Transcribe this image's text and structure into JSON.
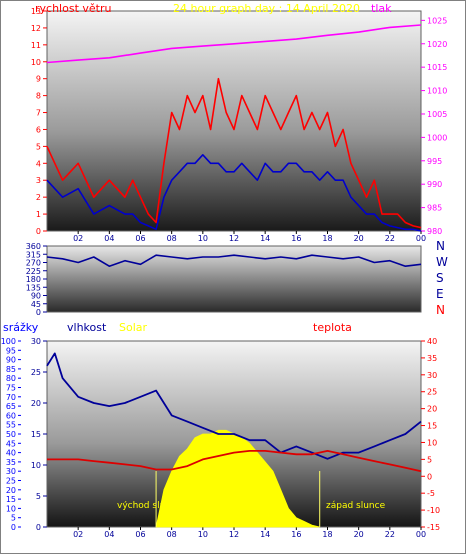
{
  "header": {
    "title": "24 hour graph day : 14 April 2020",
    "left_label": "rychlost větru",
    "right_label": "tlak"
  },
  "compass": [
    "N",
    "W",
    "S",
    "E",
    "N"
  ],
  "bottom_labels": {
    "precip": "srážky",
    "humidity": "vlhkost",
    "solar": "Solar",
    "temp": "teplota",
    "sunrise": "východ slunce",
    "sunset": "západ slunce"
  },
  "colors": {
    "wind_gust": "#ff0000",
    "wind_avg": "#0000cc",
    "pressure": "#ff00ff",
    "direction": "#000099",
    "humidity": "#000099",
    "temperature": "#dd0000",
    "solar": "#ffff00",
    "precip_axis": "#0000ff",
    "temp_axis": "#ff0000",
    "title": "#ffff00"
  },
  "chart_data": [
    {
      "type": "line",
      "x_ticks": [
        "02",
        "04",
        "06",
        "08",
        "10",
        "12",
        "14",
        "16",
        "18",
        "20",
        "22",
        "00"
      ],
      "y_left_ticks": [
        "0",
        "1",
        "2",
        "3",
        "4",
        "5",
        "6",
        "7",
        "8",
        "9",
        "10",
        "11",
        "12",
        "13"
      ],
      "y_right_ticks": [
        "980",
        "985",
        "990",
        "995",
        "1000",
        "1005",
        "1010",
        "1015",
        "1020",
        "1025"
      ],
      "ylim_left": [
        0,
        13
      ],
      "ylim_right": [
        980,
        1027
      ],
      "series": [
        {
          "name": "rychlost větru",
          "axis": "left",
          "x": [
            0,
            1,
            2,
            3,
            4,
            5,
            5.5,
            6,
            6.5,
            7,
            7.5,
            8,
            8.5,
            9,
            9.5,
            10,
            10.5,
            11,
            11.5,
            12,
            12.5,
            13,
            13.5,
            14,
            14.5,
            15,
            15.5,
            16,
            16.5,
            17,
            17.5,
            18,
            18.5,
            19,
            19.5,
            20,
            20.5,
            21,
            21.5,
            22,
            22.5,
            23,
            23.5,
            24
          ],
          "values": [
            5,
            3,
            4,
            2,
            3,
            2,
            3,
            2,
            1,
            0.5,
            4,
            7,
            6,
            8,
            7,
            8,
            6,
            9,
            7,
            6,
            8,
            7,
            6,
            8,
            7,
            6,
            7,
            8,
            6,
            7,
            6,
            7,
            5,
            6,
            4,
            3,
            2,
            3,
            1,
            1,
            1,
            0.5,
            0.3,
            0.2
          ]
        },
        {
          "name": "",
          "axis": "left",
          "x": [
            0,
            1,
            2,
            3,
            4,
            5,
            5.5,
            6,
            6.5,
            7,
            7.5,
            8,
            8.5,
            9,
            9.5,
            10,
            10.5,
            11,
            11.5,
            12,
            12.5,
            13,
            13.5,
            14,
            14.5,
            15,
            15.5,
            16,
            16.5,
            17,
            17.5,
            18,
            18.5,
            19,
            19.5,
            20,
            20.5,
            21,
            21.5,
            22,
            22.5,
            23,
            23.5,
            24
          ],
          "values": [
            3,
            2,
            2.5,
            1,
            1.5,
            1,
            1,
            0.5,
            0.3,
            0.1,
            2,
            3,
            3.5,
            4,
            4,
            4.5,
            4,
            4,
            3.5,
            3.5,
            4,
            3.5,
            3,
            4,
            3.5,
            3.5,
            4,
            4,
            3.5,
            3.5,
            3,
            3.5,
            3,
            3,
            2,
            1.5,
            1,
            1,
            0.5,
            0.3,
            0.2,
            0.1,
            0.1,
            0
          ]
        },
        {
          "name": "tlak",
          "axis": "right",
          "x": [
            0,
            2,
            4,
            6,
            8,
            10,
            12,
            14,
            16,
            18,
            20,
            22,
            24
          ],
          "values": [
            1016,
            1016.5,
            1017,
            1018,
            1019,
            1019.5,
            1020,
            1020.5,
            1021,
            1021.8,
            1022.5,
            1023.5,
            1024
          ]
        }
      ]
    },
    {
      "type": "line",
      "x_ticks": [],
      "y_ticks": [
        "0",
        "45",
        "90",
        "135",
        "180",
        "225",
        "270",
        "315",
        "360"
      ],
      "ylim": [
        0,
        360
      ],
      "series": [
        {
          "name": "",
          "x": [
            0,
            1,
            2,
            3,
            4,
            5,
            6,
            7,
            8,
            9,
            10,
            11,
            12,
            13,
            14,
            15,
            16,
            17,
            18,
            19,
            20,
            21,
            22,
            23,
            24
          ],
          "values": [
            300,
            290,
            270,
            300,
            250,
            280,
            260,
            310,
            300,
            290,
            300,
            300,
            310,
            300,
            290,
            300,
            290,
            310,
            300,
            290,
            300,
            270,
            280,
            250,
            260
          ]
        }
      ]
    },
    {
      "type": "line",
      "x_ticks": [
        "02",
        "04",
        "06",
        "08",
        "10",
        "12",
        "14",
        "16",
        "18",
        "20",
        "22",
        "00"
      ],
      "y_precip_ticks": [
        "0",
        "5",
        "10",
        "15",
        "20",
        "25",
        "30",
        "35",
        "40",
        "45",
        "50",
        "55",
        "60",
        "65",
        "70",
        "75",
        "80",
        "85",
        "90",
        "95",
        "100"
      ],
      "y_humidity_ticks": [
        "0",
        "5",
        "10",
        "15",
        "20",
        "25",
        "30"
      ],
      "y_temp_ticks": [
        "-15",
        "-10",
        "-5",
        "0",
        "5",
        "10",
        "15",
        "20",
        "25",
        "30",
        "35",
        "40"
      ],
      "ylim_precip": [
        0,
        100
      ],
      "ylim_humidity": [
        0,
        30
      ],
      "ylim_temp": [
        -15,
        40
      ],
      "series": [
        {
          "name": "vlhkost",
          "axis": "humidity",
          "x": [
            0,
            0.5,
            1,
            2,
            3,
            4,
            5,
            6,
            7,
            8,
            9,
            10,
            11,
            12,
            13,
            14,
            15,
            16,
            17,
            18,
            19,
            20,
            21,
            22,
            23,
            24
          ],
          "values": [
            26,
            28,
            24,
            21,
            20,
            19.5,
            20,
            21,
            22,
            18,
            17,
            16,
            15,
            15,
            14,
            14,
            12,
            13,
            12,
            11,
            12,
            12,
            13,
            14,
            15,
            17
          ]
        },
        {
          "name": "teplota",
          "axis": "temp",
          "x": [
            0,
            1,
            2,
            3,
            4,
            5,
            6,
            7,
            8,
            9,
            10,
            11,
            12,
            13,
            14,
            15,
            16,
            17,
            18,
            19,
            20,
            21,
            22,
            23,
            24
          ],
          "values": [
            5,
            5,
            5,
            4.5,
            4,
            3.5,
            3,
            2,
            2,
            3,
            5,
            6,
            7,
            7.5,
            7.5,
            7,
            6.5,
            6.5,
            7.5,
            6.5,
            5.5,
            4.5,
            3.5,
            2.5,
            1.5
          ]
        },
        {
          "name": "Solar",
          "axis": "precip",
          "x": [
            7,
            7.5,
            8,
            8.5,
            9,
            9.5,
            10,
            10.5,
            11,
            11.5,
            12,
            12.5,
            13,
            13.5,
            14,
            14.5,
            15,
            15.5,
            16,
            16.5,
            17,
            17.5
          ],
          "values": [
            0,
            20,
            30,
            38,
            42,
            48,
            50,
            50,
            52,
            52,
            50,
            48,
            45,
            40,
            35,
            30,
            20,
            10,
            5,
            3,
            1,
            0
          ]
        }
      ]
    }
  ]
}
